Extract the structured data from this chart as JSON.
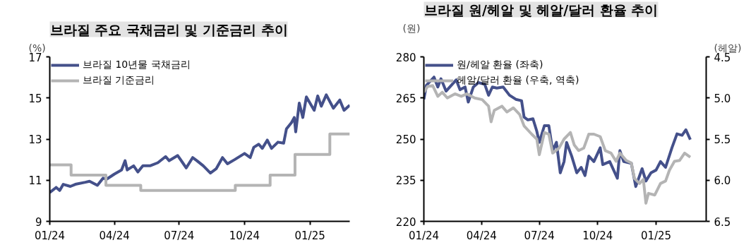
{
  "chart_data": [
    {
      "type": "line",
      "title": "브라질 주요 국채금리 및 기준금리 추이",
      "ylabel": "(%)",
      "xlim": [
        "2024-01-01",
        "2025-02-26"
      ],
      "ylim": [
        9,
        17
      ],
      "yticks": [
        9,
        11,
        13,
        15,
        17
      ],
      "xticks": [
        {
          "value": "2024-01-01",
          "label": "01/24"
        },
        {
          "value": "2024-04-01",
          "label": "04/24"
        },
        {
          "value": "2024-07-01",
          "label": "07/24"
        },
        {
          "value": "2024-10-01",
          "label": "10/24"
        },
        {
          "value": "2025-01-01",
          "label": "01/25"
        }
      ],
      "grid": false,
      "legend": "top left",
      "series": [
        {
          "name": "브라질 10년물 국채금리",
          "color": "#44508a",
          "x": [
            "2024-01-01",
            "2024-01-10",
            "2024-01-15",
            "2024-01-20",
            "2024-01-30",
            "2024-02-06",
            "2024-02-20",
            "2024-02-26",
            "2024-03-08",
            "2024-03-16",
            "2024-03-21",
            "2024-04-01",
            "2024-04-11",
            "2024-04-16",
            "2024-04-19",
            "2024-04-28",
            "2024-05-04",
            "2024-05-11",
            "2024-05-21",
            "2024-06-01",
            "2024-06-12",
            "2024-06-17",
            "2024-06-29",
            "2024-07-06",
            "2024-07-11",
            "2024-07-20",
            "2024-07-26",
            "2024-08-04",
            "2024-08-14",
            "2024-08-22",
            "2024-08-31",
            "2024-09-07",
            "2024-09-17",
            "2024-10-01",
            "2024-10-09",
            "2024-10-14",
            "2024-10-21",
            "2024-10-26",
            "2024-11-02",
            "2024-11-08",
            "2024-11-17",
            "2024-11-25",
            "2024-11-29",
            "2024-12-06",
            "2024-12-10",
            "2024-12-12",
            "2024-12-17",
            "2024-12-22",
            "2024-12-27",
            "2025-01-07",
            "2025-01-12",
            "2025-01-17",
            "2025-01-24",
            "2025-02-03",
            "2025-02-12",
            "2025-02-18",
            "2025-02-26"
          ],
          "values": [
            10.4,
            10.65,
            10.5,
            10.8,
            10.7,
            10.8,
            10.9,
            10.95,
            10.75,
            11.1,
            11.05,
            11.3,
            11.5,
            11.95,
            11.5,
            11.7,
            11.4,
            11.7,
            11.7,
            11.85,
            12.15,
            11.95,
            12.2,
            11.85,
            11.6,
            12.1,
            11.95,
            11.7,
            11.35,
            11.55,
            12.1,
            11.8,
            12.0,
            12.3,
            12.1,
            12.6,
            12.75,
            12.55,
            12.95,
            12.55,
            12.85,
            12.8,
            13.5,
            13.8,
            14.05,
            13.35,
            14.75,
            14.05,
            15.05,
            14.4,
            15.1,
            14.6,
            15.15,
            14.5,
            14.9,
            14.4,
            14.65
          ]
        },
        {
          "name": "브라질 기준금리",
          "type": "step",
          "color": "#b4b4b4",
          "x": [
            "2024-01-01",
            "2024-01-31",
            "2024-03-20",
            "2024-05-08",
            "2024-09-18",
            "2024-11-06",
            "2024-12-11",
            "2025-01-29",
            "2025-02-26"
          ],
          "values": [
            11.75,
            11.25,
            10.75,
            10.5,
            10.75,
            11.25,
            12.25,
            13.25,
            13.25
          ]
        }
      ]
    },
    {
      "type": "line",
      "title": "브라질 원/헤알 및 헤알/달러 환율 추이",
      "ylabel": "(원)",
      "y2label": "(헤알)",
      "xlim": [
        "2024-01-01",
        "2025-03-21"
      ],
      "ylim": [
        220,
        280
      ],
      "yticks": [
        220,
        235,
        250,
        265,
        280
      ],
      "y2lim": [
        6.5,
        4.5
      ],
      "y2ticks": [
        {
          "value": 4.5,
          "label": "4.5"
        },
        {
          "value": 5.0,
          "label": "5.0"
        },
        {
          "value": 5.5,
          "label": "5.5"
        },
        {
          "value": 6.0,
          "label": "6.0"
        },
        {
          "value": 6.5,
          "label": "6.5"
        }
      ],
      "xticks": [
        {
          "value": "2024-01-01",
          "label": "01/24"
        },
        {
          "value": "2024-04-01",
          "label": "04/24"
        },
        {
          "value": "2024-07-01",
          "label": "07/24"
        },
        {
          "value": "2024-10-01",
          "label": "10/24"
        },
        {
          "value": "2025-01-01",
          "label": "01/25"
        }
      ],
      "grid": false,
      "legend": "top left",
      "series": [
        {
          "name": "원/헤알 환율 (좌축)",
          "color": "#44508a",
          "x": [
            "2024-01-01",
            "2024-01-05",
            "2024-01-17",
            "2024-01-23",
            "2024-01-28",
            "2024-02-05",
            "2024-02-11",
            "2024-02-21",
            "2024-02-27",
            "2024-03-06",
            "2024-03-11",
            "2024-03-19",
            "2024-03-27",
            "2024-04-06",
            "2024-04-12",
            "2024-04-18",
            "2024-04-25",
            "2024-05-05",
            "2024-05-15",
            "2024-05-25",
            "2024-06-03",
            "2024-06-07",
            "2024-06-13",
            "2024-06-21",
            "2024-06-27",
            "2024-07-01",
            "2024-07-09",
            "2024-07-16",
            "2024-07-22",
            "2024-07-28",
            "2024-08-03",
            "2024-08-09",
            "2024-08-13",
            "2024-08-21",
            "2024-08-29",
            "2024-09-05",
            "2024-09-11",
            "2024-09-17",
            "2024-09-25",
            "2024-10-05",
            "2024-10-09",
            "2024-10-20",
            "2024-11-01",
            "2024-11-05",
            "2024-11-11",
            "2024-11-23",
            "2024-11-30",
            "2024-12-10",
            "2024-12-16",
            "2024-12-24",
            "2025-01-01",
            "2025-01-08",
            "2025-01-16",
            "2025-01-26",
            "2025-02-03",
            "2025-02-11",
            "2025-02-17",
            "2025-02-24"
          ],
          "values": [
            264.5,
            269.6,
            272.6,
            269,
            272,
            267.5,
            269,
            271.6,
            268,
            269,
            263.5,
            269,
            270.6,
            270,
            266,
            269,
            268.6,
            269,
            266,
            264.5,
            264,
            258,
            257,
            257.4,
            252.9,
            248.8,
            254.9,
            254.9,
            245.8,
            248.8,
            237.7,
            241.8,
            248.8,
            243.8,
            237.7,
            239.7,
            236.7,
            243.8,
            241.8,
            246.8,
            240.7,
            241.8,
            235.7,
            245.8,
            241.8,
            241.2,
            232.7,
            239.2,
            234.7,
            237.7,
            238.7,
            241.8,
            239.7,
            246.8,
            251.9,
            251.4,
            253.4,
            249.8
          ]
        },
        {
          "name": "헤알/달러 환율 (우축, 역축)",
          "axis": "y2",
          "color": "#b4b4b4",
          "x": [
            "2024-01-01",
            "2024-01-07",
            "2024-01-15",
            "2024-01-23",
            "2024-01-30",
            "2024-02-07",
            "2024-02-19",
            "2024-02-29",
            "2024-03-09",
            "2024-03-21",
            "2024-04-02",
            "2024-04-12",
            "2024-04-16",
            "2024-04-21",
            "2024-05-03",
            "2024-05-11",
            "2024-05-21",
            "2024-05-31",
            "2024-06-07",
            "2024-06-19",
            "2024-06-27",
            "2024-07-01",
            "2024-07-09",
            "2024-07-16",
            "2024-07-22",
            "2024-08-01",
            "2024-08-09",
            "2024-08-19",
            "2024-08-25",
            "2024-09-01",
            "2024-09-09",
            "2024-09-17",
            "2024-09-25",
            "2024-10-05",
            "2024-10-13",
            "2024-10-22",
            "2024-10-30",
            "2024-11-05",
            "2024-11-15",
            "2024-11-23",
            "2024-11-28",
            "2024-12-06",
            "2024-12-12",
            "2024-12-16",
            "2024-12-20",
            "2024-12-30",
            "2025-01-08",
            "2025-01-16",
            "2025-01-22",
            "2025-01-30",
            "2025-02-07",
            "2025-02-15",
            "2025-02-24"
          ],
          "values": [
            4.93,
            4.86,
            4.85,
            4.98,
            4.93,
            5.0,
            4.95,
            4.98,
            4.95,
            5.0,
            5.02,
            5.1,
            5.29,
            5.15,
            5.1,
            5.17,
            5.12,
            5.2,
            5.34,
            5.44,
            5.5,
            5.69,
            5.42,
            5.44,
            5.67,
            5.61,
            5.5,
            5.42,
            5.57,
            5.64,
            5.61,
            5.44,
            5.44,
            5.47,
            5.64,
            5.67,
            5.77,
            5.67,
            5.76,
            5.79,
            5.98,
            6.04,
            5.99,
            6.28,
            6.16,
            6.18,
            6.04,
            6.01,
            5.88,
            5.77,
            5.76,
            5.67,
            5.72
          ]
        }
      ]
    }
  ]
}
